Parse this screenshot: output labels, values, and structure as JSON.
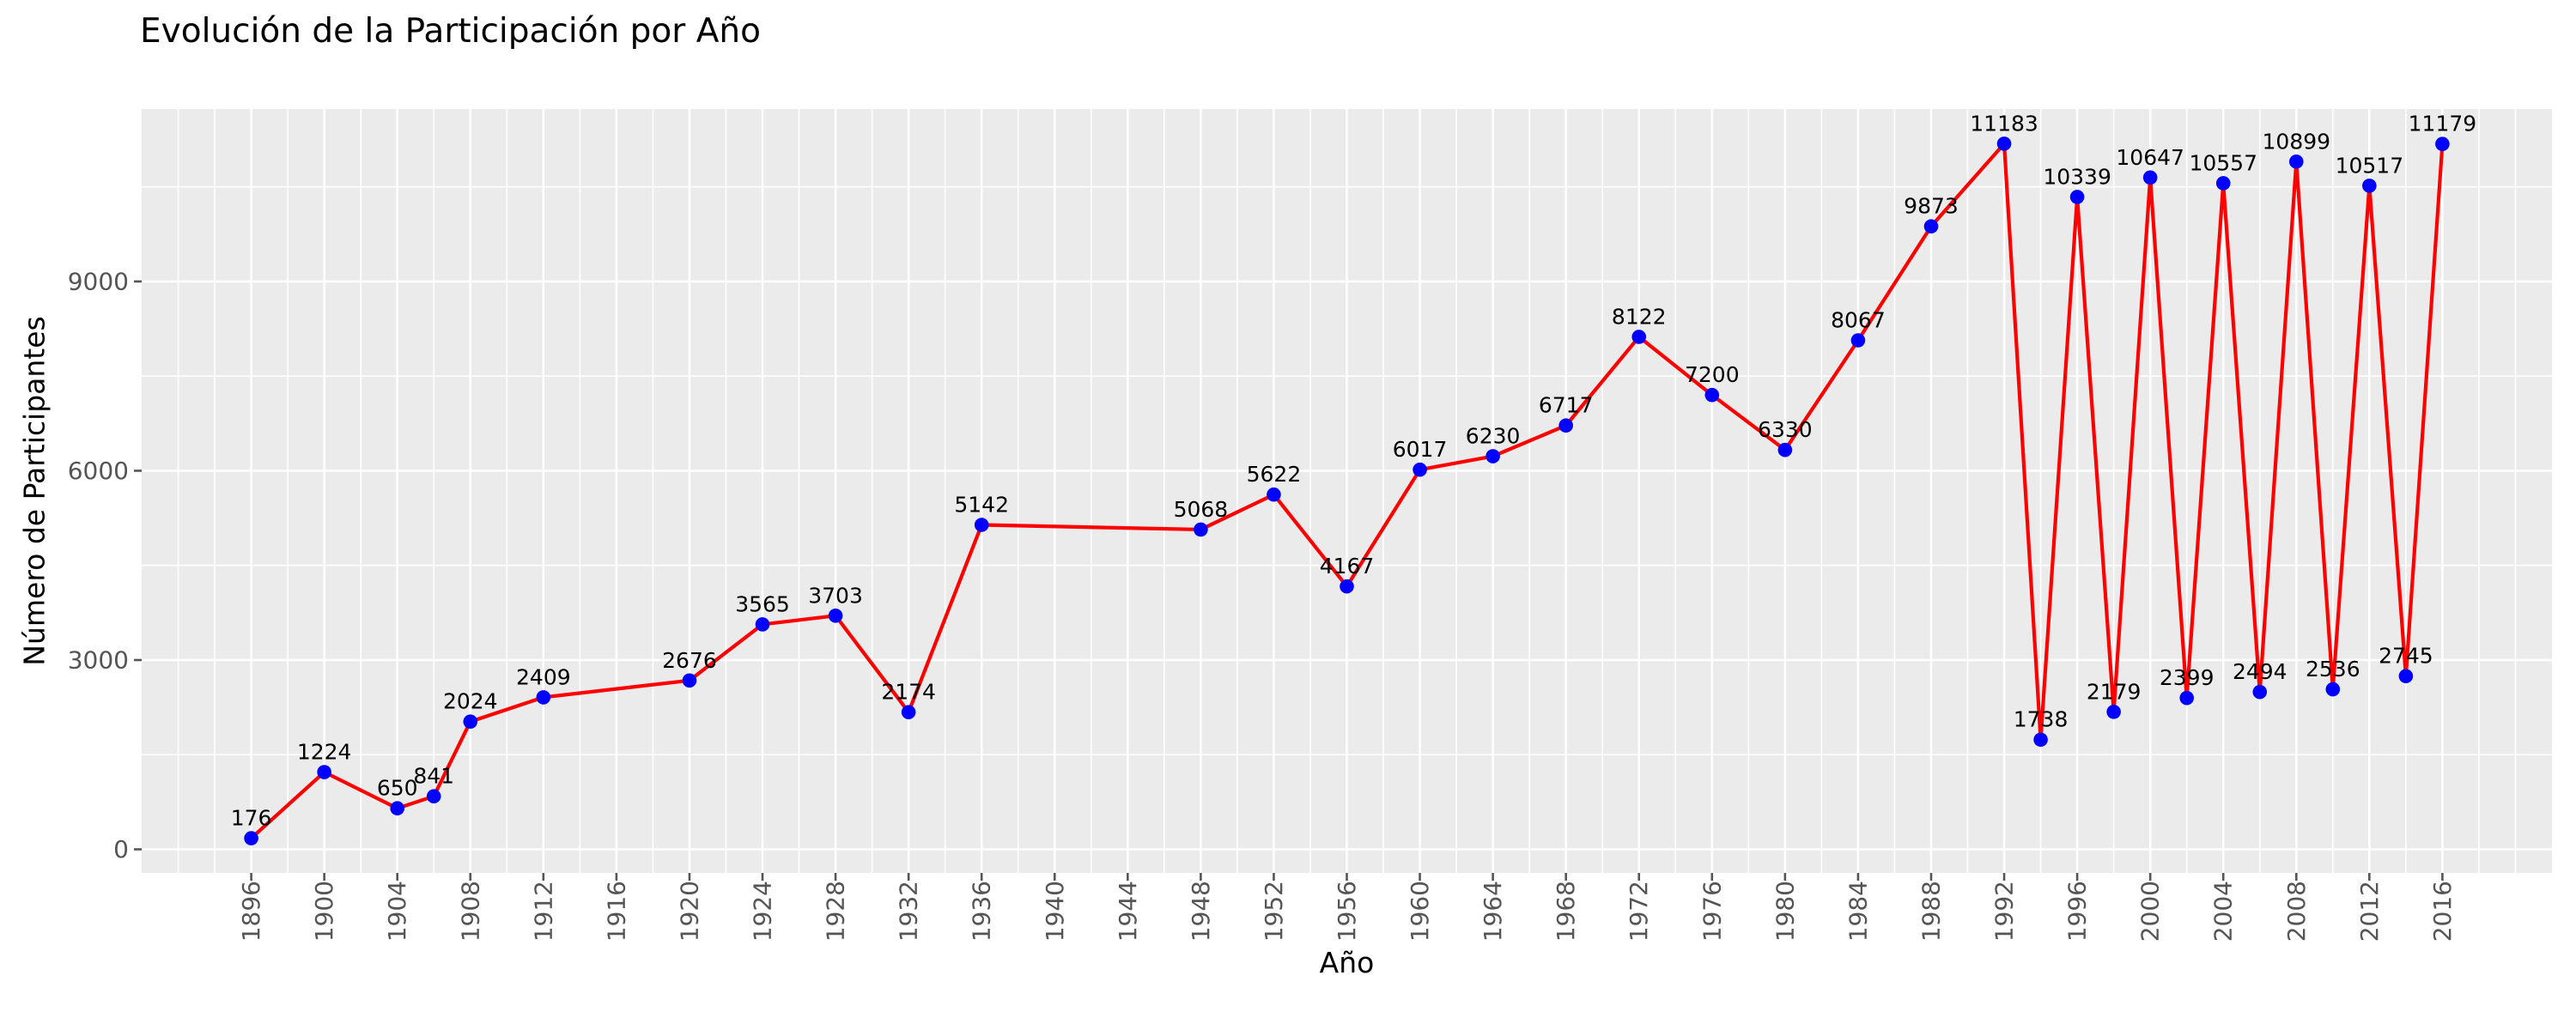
{
  "figure": {
    "title": "Evolución de la Participación por Año",
    "xlabel": "Año",
    "ylabel": "Número de Participantes"
  },
  "chart_data": {
    "type": "line",
    "title": "Evolución de la Participación por Año",
    "xlabel": "Año",
    "ylabel": "Número de Participantes",
    "x": [
      1896,
      1900,
      1904,
      1906,
      1908,
      1912,
      1920,
      1924,
      1928,
      1932,
      1936,
      1948,
      1952,
      1956,
      1960,
      1964,
      1968,
      1972,
      1976,
      1980,
      1984,
      1988,
      1992,
      1994,
      1996,
      1998,
      2000,
      2002,
      2004,
      2006,
      2008,
      2010,
      2012,
      2014,
      2016
    ],
    "values": [
      176,
      1224,
      650,
      841,
      2024,
      2409,
      2676,
      3565,
      3703,
      2174,
      5142,
      5068,
      5622,
      4167,
      6017,
      6230,
      6717,
      8122,
      7200,
      6330,
      8067,
      9873,
      11183,
      1738,
      10339,
      2179,
      10647,
      2399,
      10557,
      2494,
      10899,
      2536,
      10517,
      2745,
      11179
    ],
    "point_labels": [
      "176",
      "1224",
      "650",
      "841",
      "2024",
      "2409",
      "2676",
      "3565",
      "3703",
      "2174",
      "5142",
      "5068",
      "5622",
      "4167",
      "6017",
      "6230",
      "6717",
      "8122",
      "7200",
      "6330",
      "8067",
      "9873",
      "11183",
      "1738",
      "10339",
      "2179",
      "10647",
      "2399",
      "10557",
      "2494",
      "10899",
      "2536",
      "10517",
      "2745",
      "11179"
    ],
    "xlim": [
      1890,
      2022
    ],
    "ylim": [
      -374,
      11733
    ],
    "x_tick_labels": [
      "1896",
      "1900",
      "1904",
      "1908",
      "1912",
      "1916",
      "1920",
      "1924",
      "1928",
      "1932",
      "1936",
      "1940",
      "1944",
      "1948",
      "1952",
      "1956",
      "1960",
      "1964",
      "1968",
      "1972",
      "1976",
      "1980",
      "1984",
      "1988",
      "1992",
      "1996",
      "2000",
      "2004",
      "2008",
      "2012",
      "2016"
    ],
    "x_major_ticks": [
      1896,
      1900,
      1904,
      1908,
      1912,
      1916,
      1920,
      1924,
      1928,
      1932,
      1936,
      1940,
      1944,
      1948,
      1952,
      1956,
      1960,
      1964,
      1968,
      1972,
      1976,
      1980,
      1984,
      1988,
      1992,
      1996,
      2000,
      2004,
      2008,
      2012,
      2016
    ],
    "x_minor_grid_step": 2,
    "y_tick_labels": [
      "0",
      "3000",
      "6000",
      "9000"
    ],
    "y_major_ticks": [
      0,
      3000,
      6000,
      9000
    ],
    "y_minor_grid_step": 1500,
    "grid": true,
    "legend": false,
    "styles": {
      "line_color": "#ff0000",
      "marker_color": "#0000ff",
      "plot_bg": "#ebebeb",
      "grid_color": "#ffffff",
      "tick_color": "#555555",
      "label_color": "#000000",
      "annotation_color": "#000000"
    }
  }
}
